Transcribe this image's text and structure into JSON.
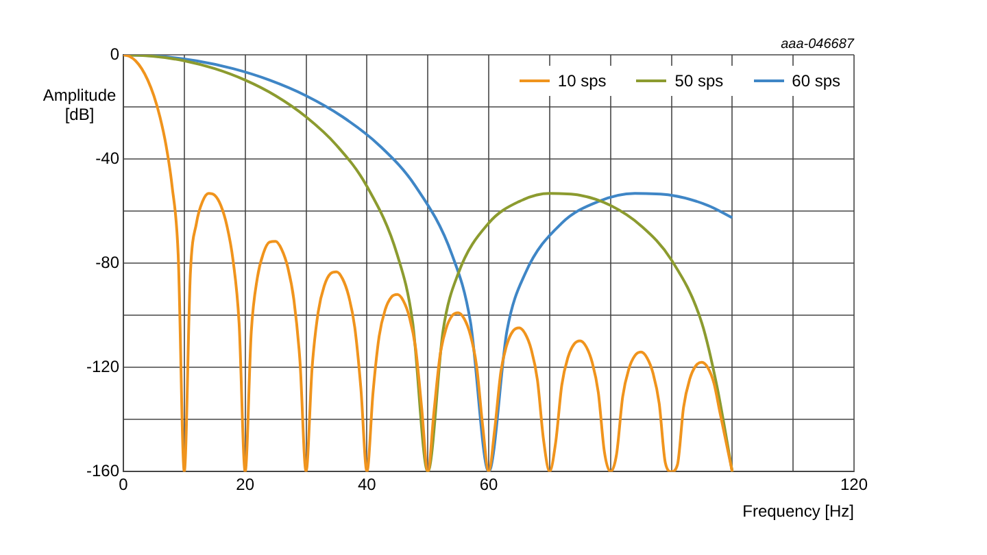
{
  "chart_data": {
    "type": "line",
    "xlabel": "Frequency [Hz]",
    "ylabel": "Amplitude [dB]",
    "annotations": [
      "aaa-046687"
    ],
    "xlim": [
      0,
      120
    ],
    "ylim": [
      -160,
      0
    ],
    "xticks": [
      0,
      {
        "value": 10,
        "label": null
      },
      20,
      {
        "value": 30,
        "label": null
      },
      40,
      {
        "value": 50,
        "label": null
      },
      60,
      {
        "value": 70,
        "label": null
      },
      {
        "value": 80,
        "label": null
      },
      {
        "value": 90,
        "label": null
      },
      {
        "value": 100,
        "label": null
      },
      {
        "value": 110,
        "label": null
      },
      120
    ],
    "yticks": [
      0,
      {
        "value": -20,
        "label": null
      },
      -40,
      {
        "value": -60,
        "label": null
      },
      -80,
      {
        "value": -100,
        "label": null
      },
      -120,
      {
        "value": -140,
        "label": null
      },
      -160
    ],
    "grid": true,
    "legend": "top right",
    "line_style": "solid",
    "marker": "none",
    "series": [
      {
        "name": "10 sps",
        "color": "#f0941d",
        "x": [
          0,
          1,
          2,
          3,
          4,
          5,
          6,
          7,
          8,
          9,
          10,
          11,
          12,
          13,
          14,
          15,
          16,
          17,
          18,
          19,
          20,
          21,
          22,
          23,
          24,
          25,
          26,
          27,
          28,
          29,
          30,
          31,
          32,
          33,
          34,
          35,
          36,
          37,
          38,
          39,
          40,
          41,
          42,
          43,
          44,
          45,
          46,
          47,
          48,
          49,
          50,
          51,
          52,
          53,
          54,
          55,
          56,
          57,
          58,
          59,
          60,
          61,
          62,
          63,
          64,
          65,
          66,
          67,
          68,
          69,
          70,
          71,
          72,
          73,
          74,
          75,
          76,
          77,
          78,
          79,
          80,
          81,
          82,
          83,
          84,
          85,
          86,
          87,
          88,
          89,
          90,
          91,
          92,
          93,
          94,
          95,
          96,
          97,
          98,
          100
        ],
        "values": [
          0,
          -0.6,
          -2.3,
          -5.3,
          -9.7,
          -15.7,
          -23.8,
          -34.7,
          -50.5,
          -76.9,
          -160,
          -83.9,
          -64.6,
          -56.3,
          -53.2,
          -53.9,
          -57.8,
          -65.6,
          -78.7,
          -102.9,
          -160,
          -106.4,
          -85.6,
          -76.1,
          -71.9,
          -71.6,
          -74.7,
          -81.6,
          -94,
          -117.6,
          -160,
          -119.9,
          -98.6,
          -88.6,
          -84,
          -83.3,
          -86,
          -92.6,
          -104.6,
          -127.9,
          -160,
          -129.6,
          -108.1,
          -97.8,
          -93,
          -92,
          -94.5,
          -100.9,
          -112.7,
          -135.8,
          -160,
          -137.2,
          -115.5,
          -105.1,
          -100.1,
          -99,
          -101.4,
          -107.6,
          -119.3,
          -142.2,
          -160,
          -143.4,
          -121.6,
          -111.1,
          -106,
          -104.8,
          -107.1,
          -113.2,
          -124.8,
          -147.7,
          -160,
          -148.7,
          -126.8,
          -116.2,
          -111.1,
          -109.8,
          -112,
          -118.1,
          -129.6,
          -152.4,
          -160,
          -153.3,
          -131.3,
          -120.7,
          -115.5,
          -114.1,
          -116.3,
          -122.3,
          -133.8,
          -156.5,
          -160,
          -157.3,
          -135.3,
          -124.6,
          -119.4,
          -118,
          -120.1,
          -126.1,
          -137.5,
          -160
        ]
      },
      {
        "name": "50 sps",
        "color": "#8c9b2f",
        "x": [
          0,
          5,
          10,
          15,
          20,
          25,
          30,
          35,
          40,
          45,
          47.5,
          50,
          52.5,
          55,
          60,
          65,
          70,
          75,
          80,
          85,
          90,
          95,
          97.5,
          100
        ],
        "values": [
          0,
          -0.6,
          -2.3,
          -5.3,
          -9.7,
          -15.7,
          -23.8,
          -34.7,
          -50.5,
          -76.9,
          -102.5,
          -160,
          -105.9,
          -83.9,
          -64.6,
          -56.3,
          -53.2,
          -53.9,
          -57.8,
          -65.6,
          -78.7,
          -102.9,
          -127.4,
          -160
        ]
      },
      {
        "name": "60 sps",
        "color": "#3f86c6",
        "x": [
          0,
          6,
          12,
          18,
          24,
          30,
          36,
          42,
          48,
          54,
          57,
          60,
          63,
          66,
          72,
          78,
          84,
          90,
          96,
          100
        ],
        "values": [
          0,
          -0.6,
          -2.3,
          -5.3,
          -9.7,
          -15.7,
          -23.8,
          -34.7,
          -50.5,
          -76.9,
          -102.5,
          -160,
          -105.9,
          -83.9,
          -64.6,
          -56.3,
          -53.2,
          -53.9,
          -57.8,
          -62.5
        ]
      }
    ]
  }
}
